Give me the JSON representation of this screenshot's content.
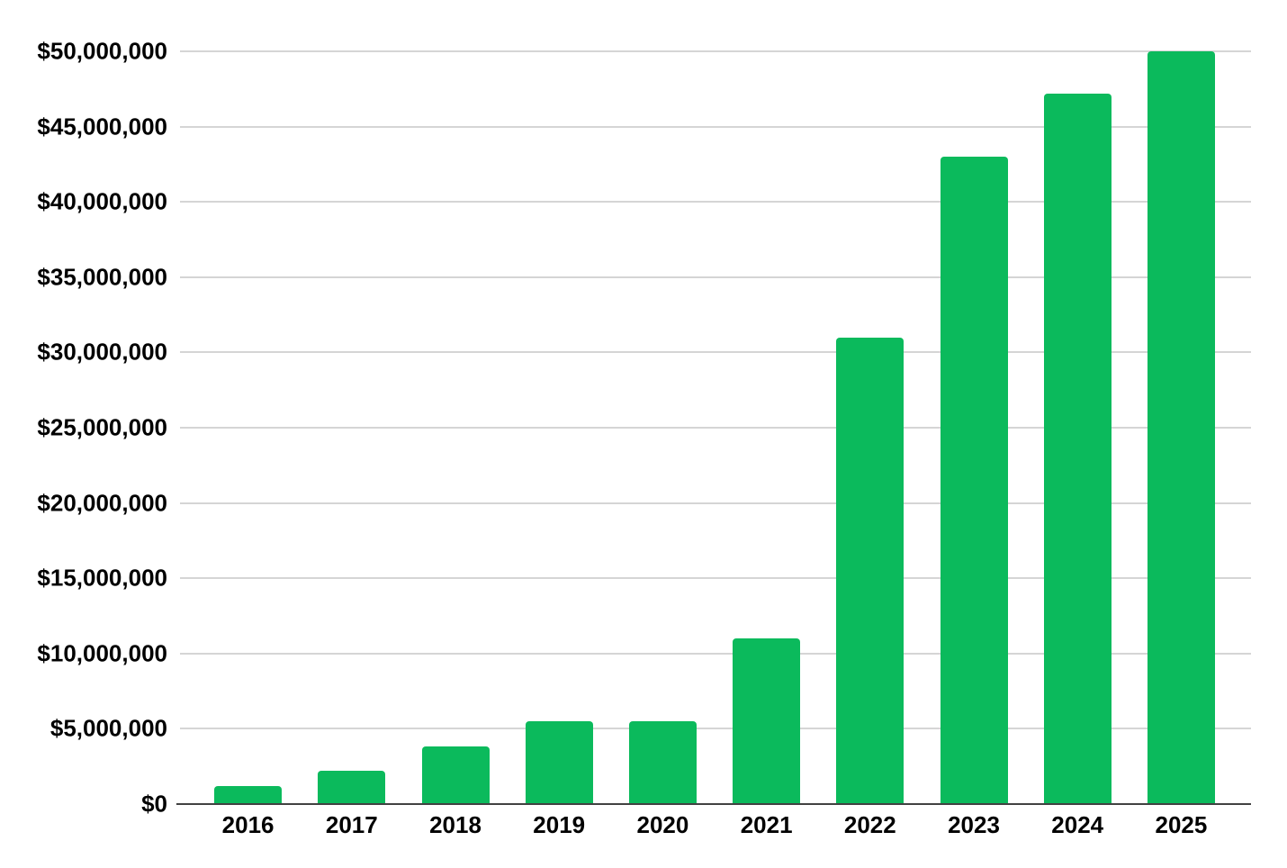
{
  "chart_data": {
    "type": "bar",
    "title": "",
    "xlabel": "",
    "ylabel": "",
    "categories": [
      "2016",
      "2017",
      "2018",
      "2019",
      "2020",
      "2021",
      "2022",
      "2023",
      "2024",
      "2025"
    ],
    "values": [
      1200000,
      2200000,
      3800000,
      5500000,
      5500000,
      11000000,
      31000000,
      43000000,
      47200000,
      50000000
    ],
    "ylim": [
      0,
      50000000
    ],
    "ytick_interval": 5000000,
    "ytick_labels": [
      "$0",
      "$5,000,000",
      "$10,000,000",
      "$15,000,000",
      "$20,000,000",
      "$25,000,000",
      "$30,000,000",
      "$35,000,000",
      "$40,000,000",
      "$45,000,000",
      "$50,000,000"
    ],
    "grid": true,
    "legend_position": "none",
    "colors": {
      "bar": "#0bba5c",
      "gridline": "#d5d5d5",
      "axis_line": "#424242",
      "text": "#000000",
      "background": "#ffffff"
    }
  }
}
